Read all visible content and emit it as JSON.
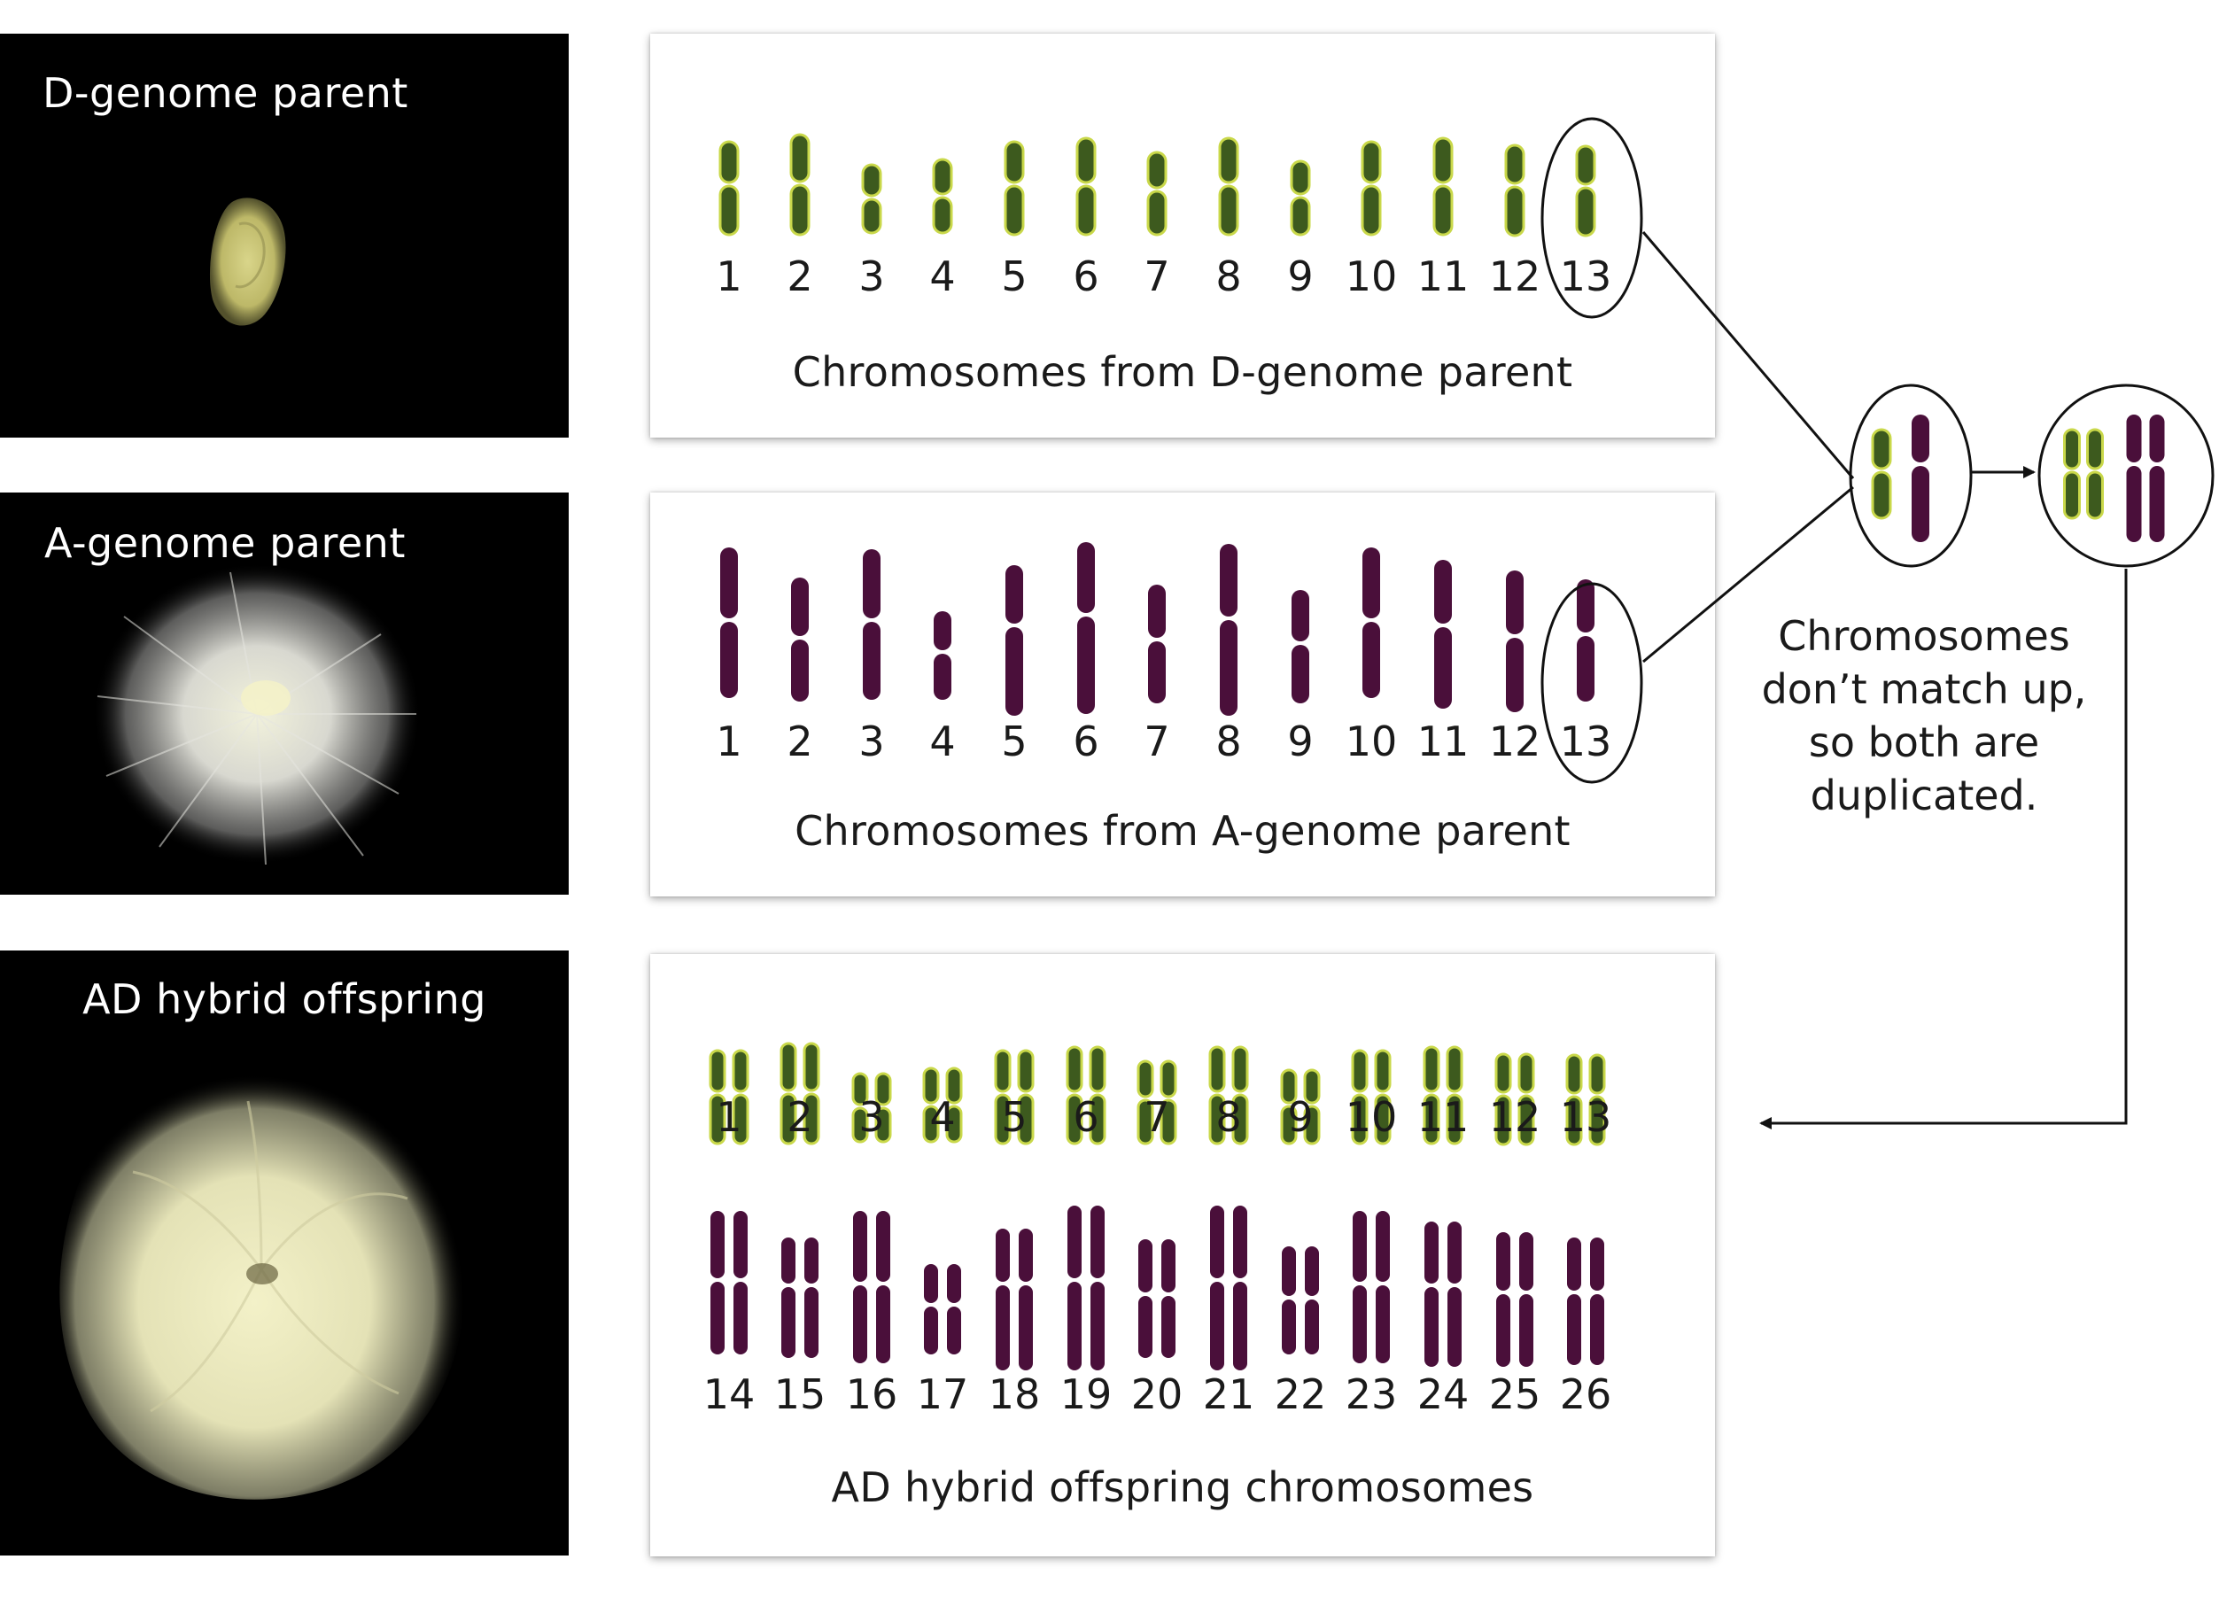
{
  "photos": {
    "d_parent": {
      "label": "D-genome parent"
    },
    "a_parent": {
      "label": "A-genome parent"
    },
    "hybrid": {
      "label": "AD hybrid offspring"
    }
  },
  "panels": {
    "d": {
      "title": "Chromosomes from D-genome parent",
      "numbers": [
        "1",
        "2",
        "3",
        "4",
        "5",
        "6",
        "7",
        "8",
        "9",
        "10",
        "11",
        "12",
        "13"
      ]
    },
    "a": {
      "title": "Chromosomes from A-genome parent",
      "numbers": [
        "1",
        "2",
        "3",
        "4",
        "5",
        "6",
        "7",
        "8",
        "9",
        "10",
        "11",
        "12",
        "13"
      ]
    },
    "hybrid": {
      "title": "AD hybrid offspring chromosomes",
      "top_numbers": [
        "1",
        "2",
        "3",
        "4",
        "5",
        "6",
        "7",
        "8",
        "9",
        "10",
        "11",
        "12",
        "13"
      ],
      "bottom_numbers": [
        "14",
        "15",
        "16",
        "17",
        "18",
        "19",
        "20",
        "21",
        "22",
        "23",
        "24",
        "25",
        "26"
      ]
    }
  },
  "annotation": {
    "text": "Chromosomes\ndon’t match up,\nso both are\nduplicated."
  },
  "colors": {
    "d_chromosome": "#3d5a1e",
    "d_chromosome_outline": "#c9d84a",
    "a_chromosome": "#4a0f3a",
    "photo_bg": "#000000"
  }
}
